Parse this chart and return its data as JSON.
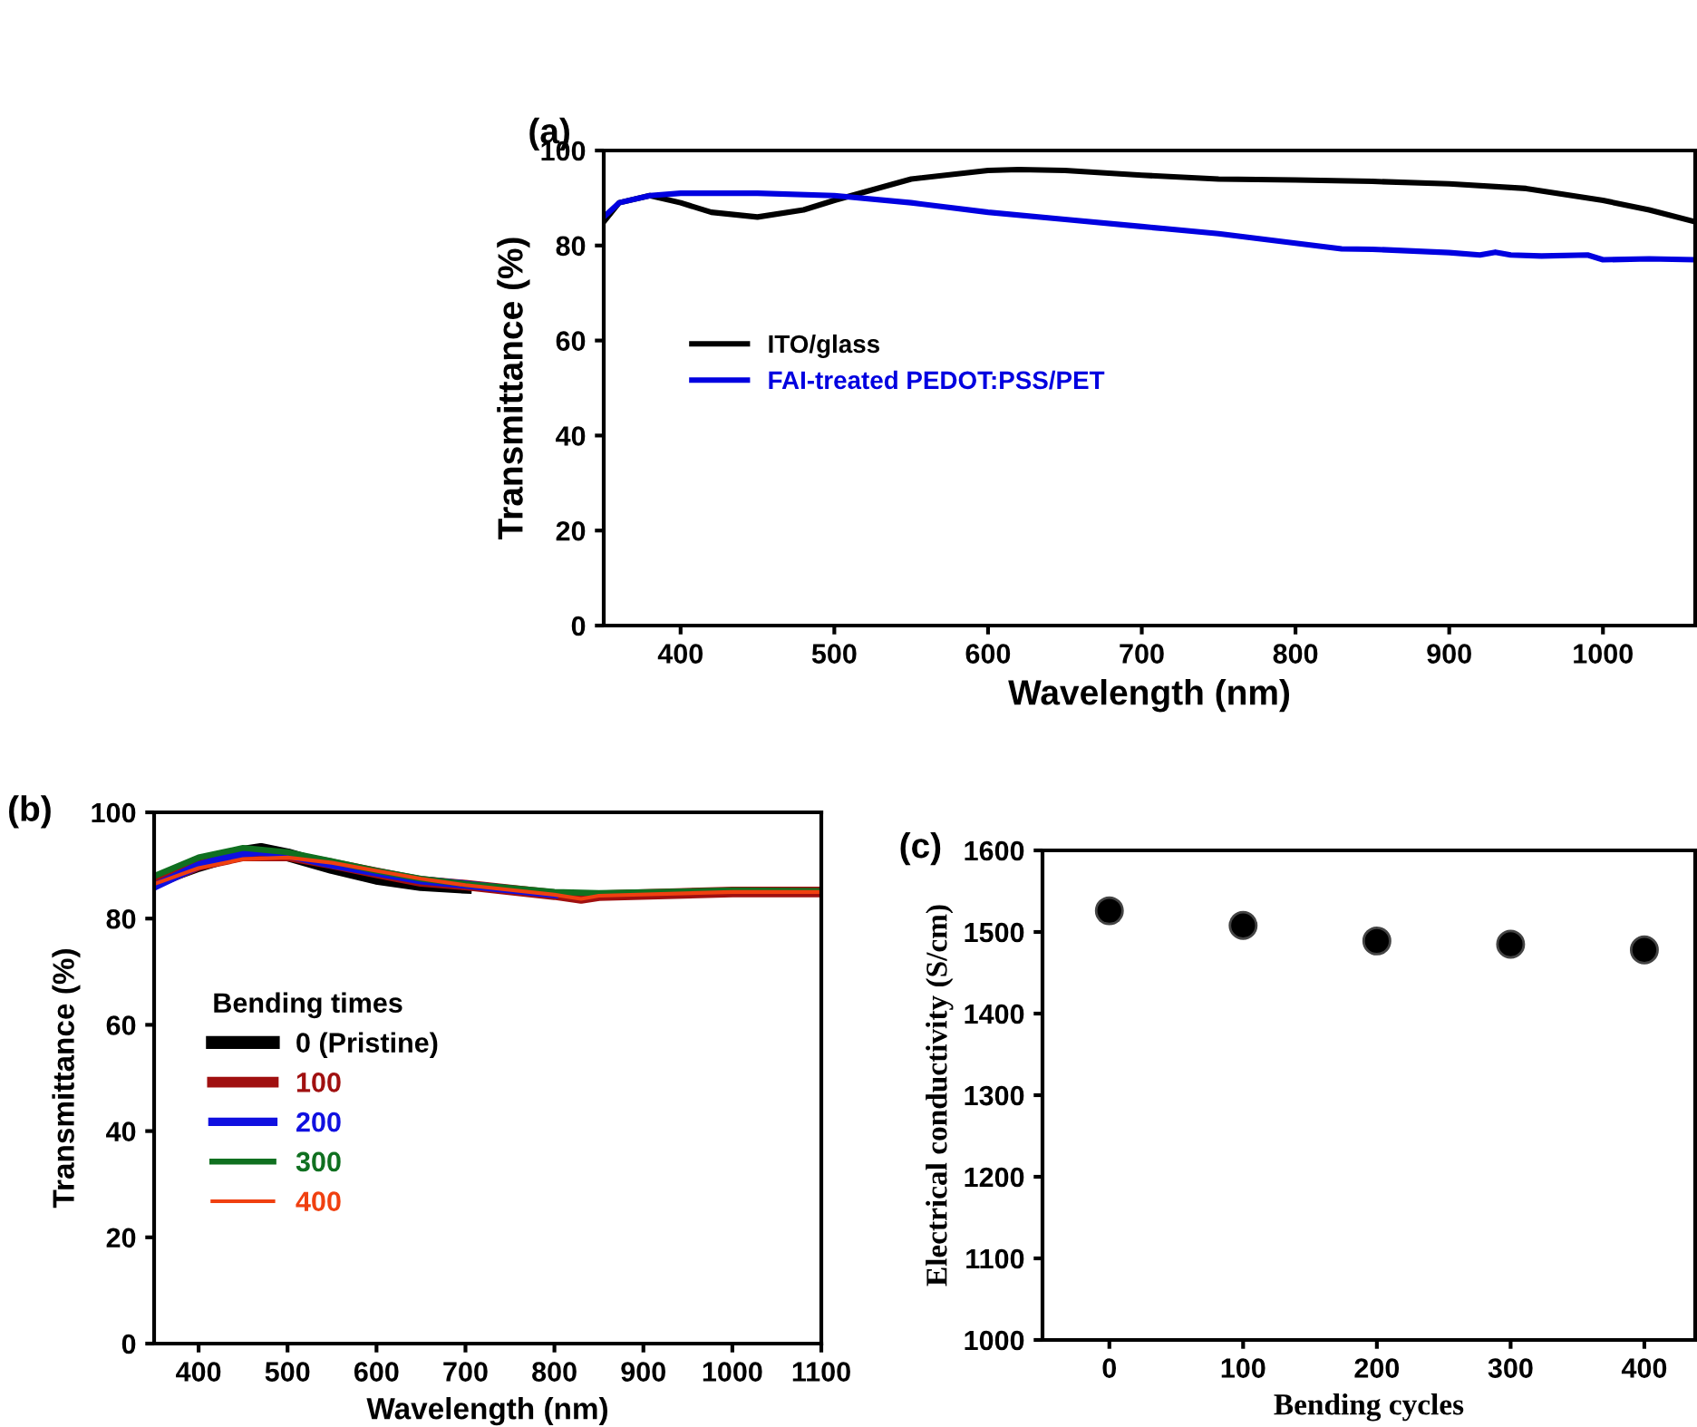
{
  "chart_data": [
    {
      "type": "line",
      "annotations": [
        "(a)"
      ],
      "xlabel": "Wavelength (nm)",
      "ylabel": "Transmittance (%)",
      "xlim": [
        350,
        1060
      ],
      "xticks": [
        400,
        500,
        600,
        700,
        800,
        900,
        1000
      ],
      "ylim": [
        0,
        100
      ],
      "yticks": [
        0,
        20,
        40,
        60,
        80,
        100
      ],
      "legend": "center left",
      "grid": false,
      "series": [
        {
          "name": "ITO/glass",
          "color": "#000000",
          "x": [
            350,
            360,
            380,
            400,
            420,
            450,
            480,
            500,
            550,
            600,
            620,
            650,
            700,
            750,
            800,
            850,
            900,
            950,
            1000,
            1030,
            1060
          ],
          "values": [
            85,
            89,
            90.5,
            89,
            87,
            86,
            87.5,
            89.5,
            94,
            95.8,
            96,
            95.8,
            94.8,
            94,
            93.8,
            93.5,
            93,
            92,
            89.5,
            87.5,
            85
          ]
        },
        {
          "name": "FAI-treated PEDOT:PSS/PET",
          "color": "#0000e0",
          "x": [
            350,
            360,
            380,
            400,
            450,
            500,
            550,
            600,
            650,
            700,
            750,
            800,
            830,
            850,
            900,
            920,
            930,
            940,
            960,
            990,
            1000,
            1030,
            1060
          ],
          "values": [
            86,
            89,
            90.5,
            91,
            91,
            90.5,
            89,
            87,
            85.5,
            84,
            82.5,
            80.5,
            79.3,
            79.2,
            78.5,
            78,
            78.6,
            78,
            77.8,
            78,
            77,
            77.2,
            77
          ]
        }
      ]
    },
    {
      "type": "line",
      "annotations": [
        "(b)"
      ],
      "xlabel": "Wavelength (nm)",
      "ylabel": "Transmittance (%)",
      "xlim": [
        350,
        1100
      ],
      "xticks": [
        400,
        500,
        600,
        700,
        800,
        900,
        1000,
        1100
      ],
      "ylim": [
        0,
        100
      ],
      "yticks": [
        0,
        20,
        40,
        60,
        80,
        100
      ],
      "legend": "center left",
      "legend_title": "Bending times",
      "grid": false,
      "series": [
        {
          "name": "0 (Pristine)",
          "color": "#000000",
          "x": [
            350,
            400,
            450,
            470,
            500,
            550,
            600,
            650,
            700
          ],
          "values": [
            87,
            90,
            92.5,
            93,
            92,
            89.6,
            87.6,
            86.4,
            85.9
          ]
        },
        {
          "name": "100",
          "color": "#a01010",
          "x": [
            350,
            400,
            450,
            500,
            550,
            600,
            650,
            700,
            800,
            830,
            850,
            1000,
            1100
          ],
          "values": [
            86.5,
            90,
            91.8,
            91.8,
            90.3,
            88.6,
            87,
            86.3,
            84.5,
            83.8,
            84.3,
            85,
            85
          ]
        },
        {
          "name": "200",
          "color": "#1010e0",
          "x": [
            350,
            400,
            450,
            470,
            500,
            550,
            600,
            650,
            700,
            800
          ],
          "values": [
            86,
            90,
            92.3,
            92.6,
            92,
            90.2,
            88.7,
            87.2,
            86.4,
            84.6
          ]
        },
        {
          "name": "300",
          "color": "#107020",
          "x": [
            350,
            400,
            450,
            500,
            550,
            600,
            650,
            700,
            800,
            850,
            1000,
            1100
          ],
          "values": [
            88,
            91.5,
            93.3,
            92.5,
            90.8,
            89,
            87.5,
            86.5,
            85,
            84.8,
            85.3,
            85.2
          ]
        },
        {
          "name": "400",
          "color": "#f04010",
          "x": [
            350,
            400,
            450,
            500,
            550,
            600,
            650,
            700,
            800,
            830,
            850,
            1000,
            1100
          ],
          "values": [
            86.5,
            89.5,
            91.2,
            91.5,
            90.5,
            89,
            87.5,
            86.3,
            84.5,
            83.7,
            84.3,
            85,
            85
          ]
        }
      ]
    },
    {
      "type": "scatter",
      "annotations": [
        "(c)"
      ],
      "xlabel": "Bending cycles",
      "ylabel": "Electrical conductivity (S/cm)",
      "xlim": [
        -50,
        438
      ],
      "xticks": [
        0,
        100,
        200,
        300,
        400
      ],
      "ylim": [
        1000,
        1600
      ],
      "yticks": [
        1000,
        1100,
        1200,
        1300,
        1400,
        1500,
        1600
      ],
      "marker": "circle",
      "grid": false,
      "series": [
        {
          "color": "#000000",
          "x": [
            0,
            100,
            200,
            300,
            400
          ],
          "values": [
            1526,
            1508,
            1489,
            1485,
            1478
          ]
        }
      ]
    }
  ]
}
